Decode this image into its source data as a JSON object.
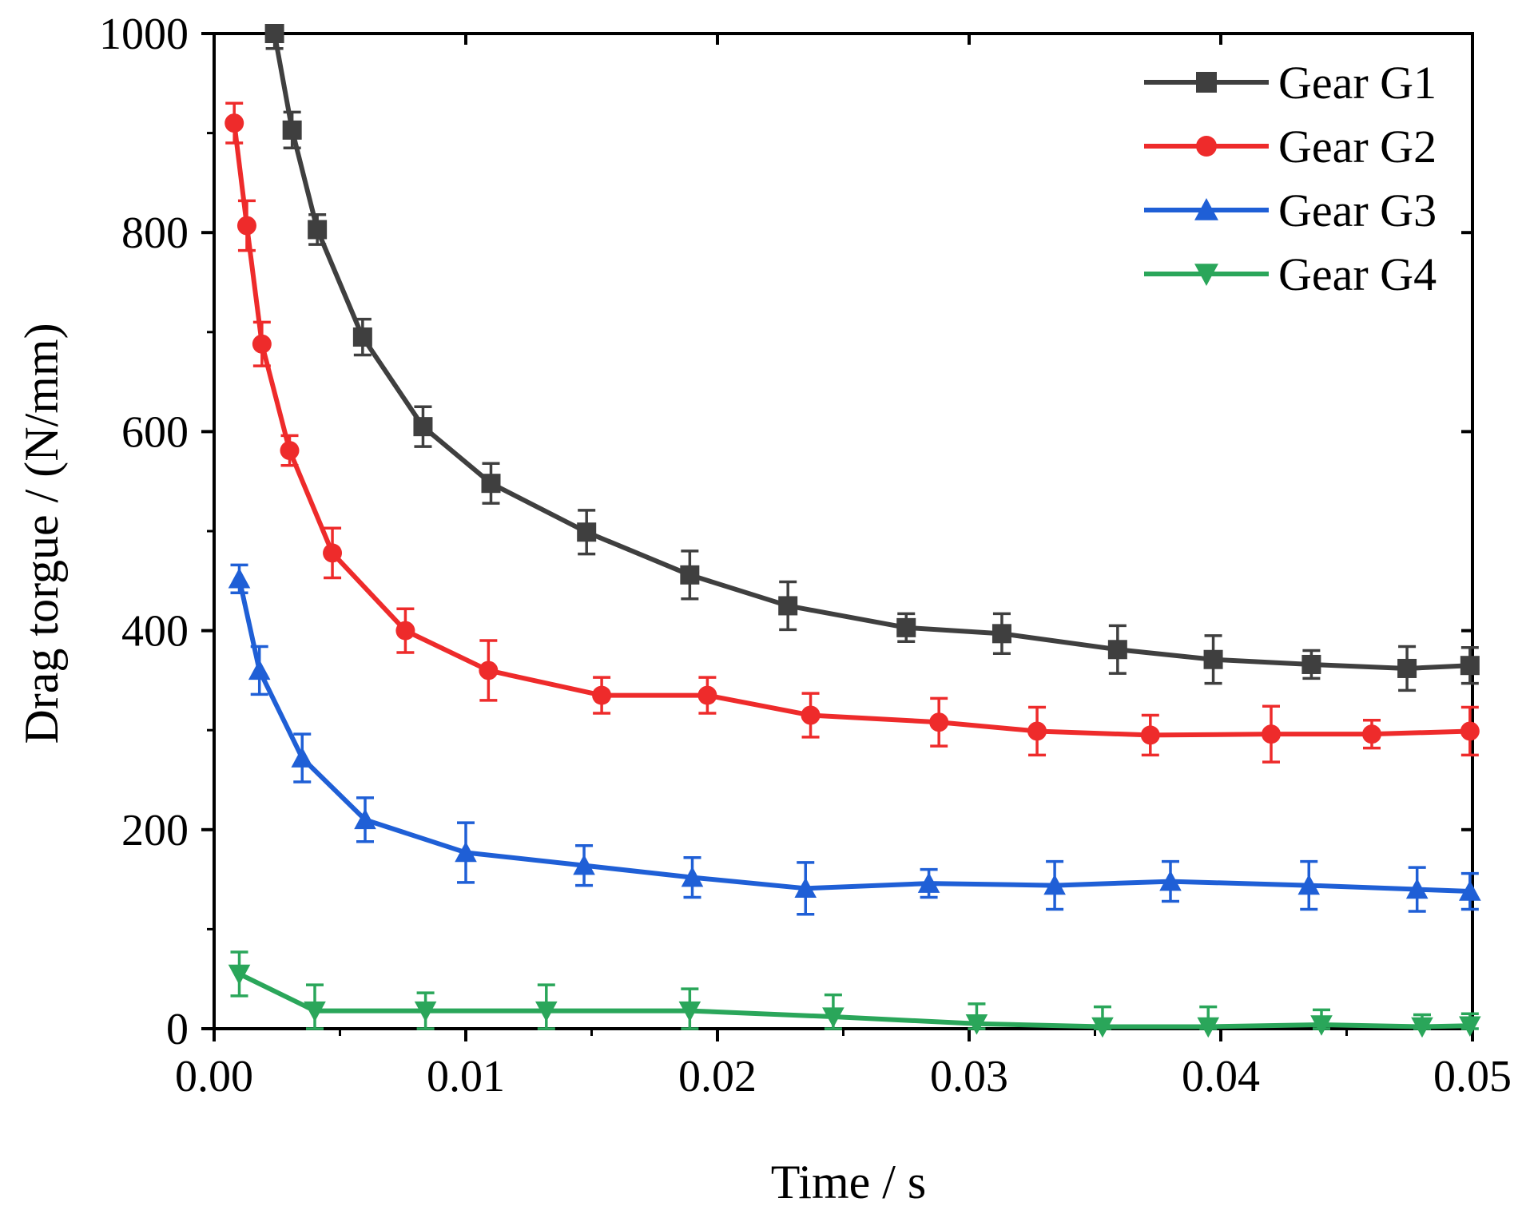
{
  "chart_data": {
    "type": "line",
    "title": "",
    "xlabel": "Time / s",
    "ylabel": "Drag torgue / (N/mm)",
    "xlim": [
      0.0,
      0.05
    ],
    "ylim": [
      0,
      1000
    ],
    "x_ticks": [
      0.0,
      0.01,
      0.02,
      0.03,
      0.04,
      0.05
    ],
    "x_tick_labels": [
      "0.00",
      "0.01",
      "0.02",
      "0.03",
      "0.04",
      "0.05"
    ],
    "y_ticks": [
      0,
      200,
      400,
      600,
      800,
      1000
    ],
    "y_tick_labels": [
      "0",
      "200",
      "400",
      "600",
      "800",
      "1000"
    ],
    "grid": false,
    "legend_position": "top-right",
    "error_bars": true,
    "series": [
      {
        "name": "Gear G1",
        "color": "#3f3f3f",
        "marker": "square",
        "x": [
          0.0024,
          0.0031,
          0.0041,
          0.0059,
          0.0083,
          0.011,
          0.0148,
          0.0189,
          0.0228,
          0.0275,
          0.0313,
          0.0359,
          0.0397,
          0.0436,
          0.0474,
          0.0499
        ],
        "values": [
          1000,
          903,
          803,
          695,
          605,
          548,
          499,
          456,
          425,
          403,
          397,
          381,
          371,
          366,
          362,
          365
        ],
        "errors": [
          15,
          18,
          15,
          18,
          20,
          20,
          22,
          24,
          24,
          14,
          20,
          24,
          24,
          14,
          22,
          18
        ]
      },
      {
        "name": "Gear G2",
        "color": "#ee2b2b",
        "marker": "circle",
        "x": [
          0.0008,
          0.0013,
          0.0019,
          0.003,
          0.0047,
          0.0076,
          0.0109,
          0.0154,
          0.0196,
          0.0237,
          0.0288,
          0.0327,
          0.0372,
          0.042,
          0.046,
          0.0499
        ],
        "values": [
          910,
          807,
          688,
          581,
          478,
          400,
          360,
          335,
          335,
          315,
          308,
          299,
          295,
          296,
          296,
          299
        ],
        "errors": [
          20,
          25,
          22,
          15,
          25,
          22,
          30,
          18,
          18,
          22,
          24,
          24,
          20,
          28,
          14,
          24
        ]
      },
      {
        "name": "Gear G3",
        "color": "#1f5fd6",
        "marker": "triangle-up",
        "x": [
          0.001,
          0.0018,
          0.0035,
          0.006,
          0.01,
          0.0147,
          0.019,
          0.0235,
          0.0284,
          0.0334,
          0.038,
          0.0435,
          0.0478,
          0.0499
        ],
        "values": [
          452,
          360,
          272,
          210,
          177,
          164,
          152,
          141,
          146,
          144,
          148,
          144,
          140,
          138
        ],
        "errors": [
          14,
          24,
          24,
          22,
          30,
          20,
          20,
          26,
          14,
          24,
          20,
          24,
          22,
          18
        ]
      },
      {
        "name": "Gear G4",
        "color": "#2aa65a",
        "marker": "triangle-down",
        "x": [
          0.001,
          0.004,
          0.0084,
          0.0132,
          0.0189,
          0.0246,
          0.0303,
          0.0353,
          0.0395,
          0.044,
          0.048,
          0.0499
        ],
        "values": [
          55,
          18,
          18,
          18,
          18,
          12,
          5,
          2,
          2,
          4,
          2,
          3
        ],
        "errors": [
          22,
          26,
          18,
          26,
          22,
          22,
          20,
          20,
          20,
          15,
          12,
          12
        ]
      }
    ]
  }
}
